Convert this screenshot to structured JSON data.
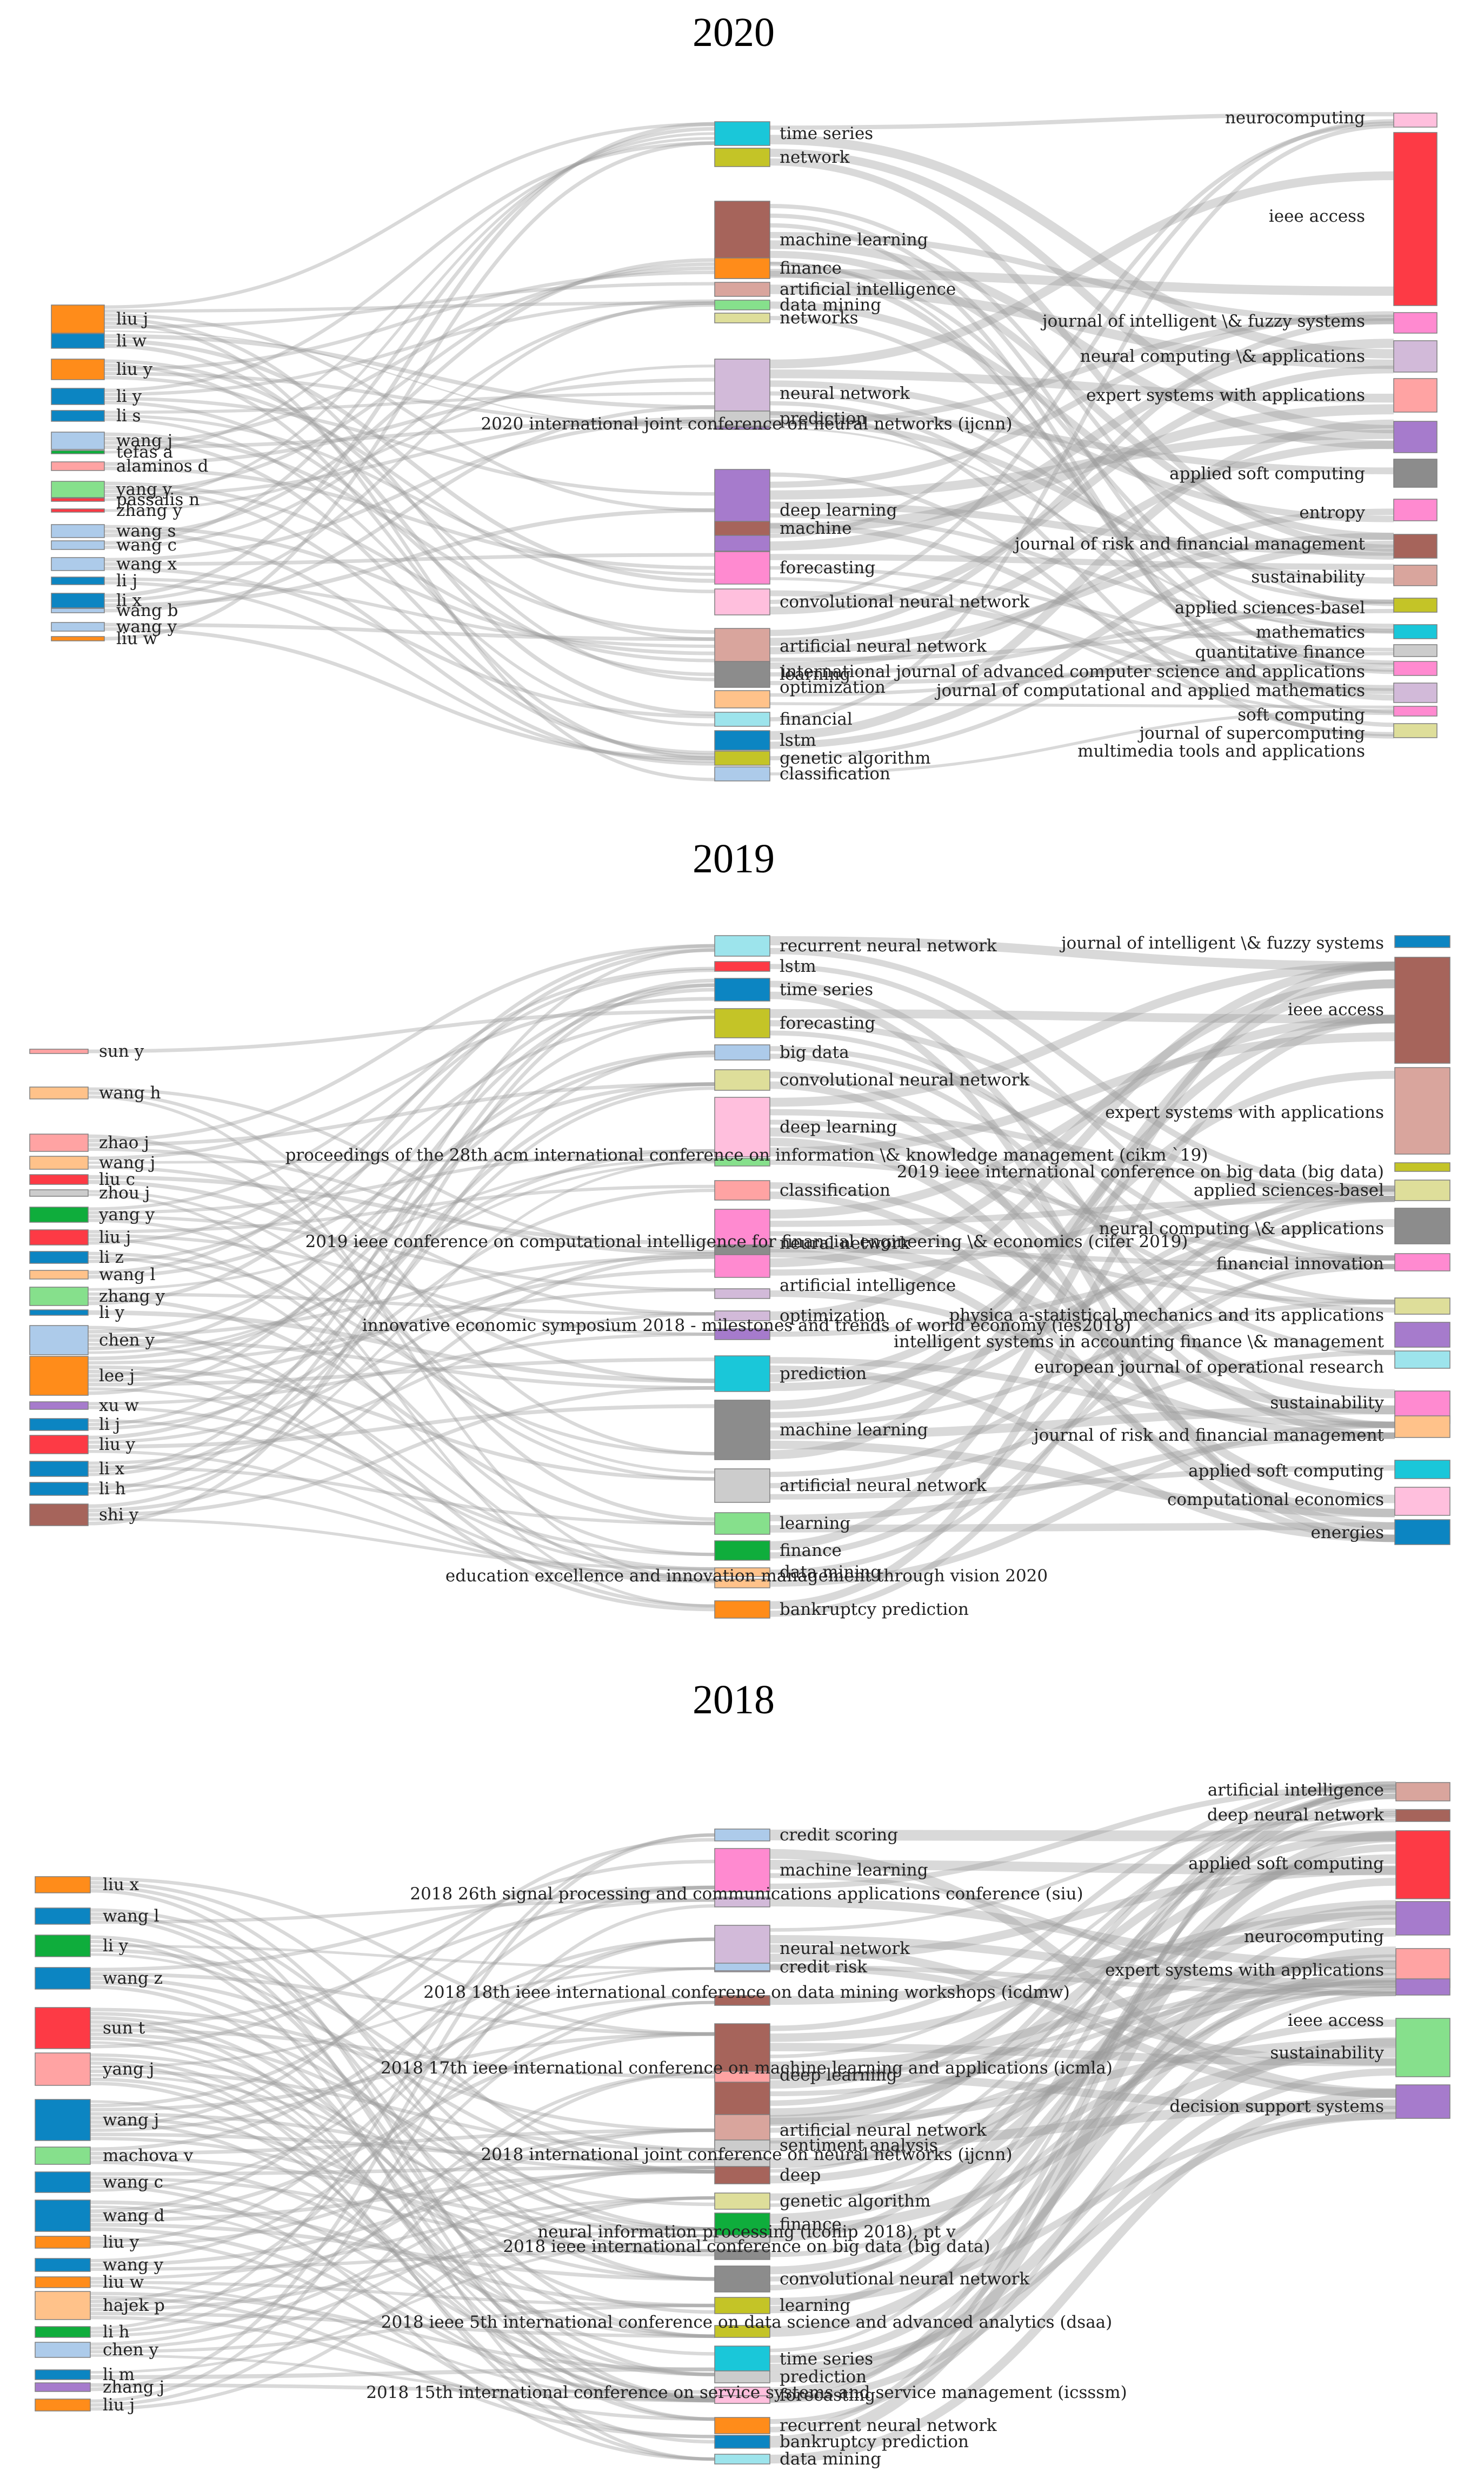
{
  "figure": {
    "panels": [
      {
        "title": "2020",
        "authors": [
          "liu j",
          "li w",
          "liu y",
          "li y",
          "li s",
          "wang j",
          "tefas a",
          "alaminos d",
          "yang y",
          "passalis n",
          "zhang y",
          "wang s",
          "wang c",
          "wang x",
          "li j",
          "li x",
          "wang b",
          "wang y",
          "liu w"
        ],
        "keywords": [
          "time series",
          "network",
          "machine learning",
          "finance",
          "artificial intelligence",
          "data mining",
          "networks",
          "neural network",
          "prediction",
          "2020 international joint conference on neural networks (ijcnn)",
          "deep learning",
          "machine",
          "forecasting",
          "convolutional neural network",
          "artificial neural network",
          "learning",
          "optimization",
          "financial",
          "lstm",
          "genetic algorithm",
          "classification"
        ],
        "venues": [
          "neurocomputing",
          "ieee access",
          "journal of intelligent \\& fuzzy systems",
          "neural computing \\& applications",
          "expert systems with applications",
          "applied soft computing",
          "entropy",
          "journal of risk and financial management",
          "sustainability",
          "applied sciences-basel",
          "mathematics",
          "quantitative finance",
          "international journal of advanced computer science and applications",
          "journal of computational and applied mathematics",
          "soft computing",
          "journal of supercomputing",
          "multimedia tools and applications"
        ]
      },
      {
        "title": "2019",
        "authors": [
          "sun y",
          "wang h",
          "zhao j",
          "wang j",
          "liu c",
          "zhou j",
          "yang y",
          "liu j",
          "li z",
          "wang l",
          "zhang y",
          "li y",
          "chen y",
          "lee j",
          "xu w",
          "li j",
          "liu y",
          "li x",
          "li h",
          "shi y"
        ],
        "keywords": [
          "recurrent neural network",
          "lstm",
          "time series",
          "forecasting",
          "big data",
          "convolutional neural network",
          "deep learning",
          "proceedings of the 28th acm international conference on information \\& knowledge management (cikm `19)",
          "classification",
          "neural network",
          "2019 ieee conference on computational intelligence for financial engineering \\& economics (cifer 2019)",
          "artificial intelligence",
          "optimization",
          "innovative economic symposium 2018 - milestones and trends of world economy (ies2018)",
          "prediction",
          "machine learning",
          "artificial neural network",
          "learning",
          "finance",
          "data mining",
          "education excellence and innovation management through vision 2020",
          "bankruptcy prediction"
        ],
        "venues": [
          "journal of intelligent \\& fuzzy systems",
          "ieee access",
          "expert systems with applications",
          "2019 ieee international conference on big data (big data)",
          "applied sciences-basel",
          "neural computing \\& applications",
          "financial innovation",
          "physica a-statistical mechanics and its applications",
          "intelligent systems in accounting finance \\& management",
          "european journal of operational research",
          "sustainability",
          "journal of risk and financial management",
          "applied soft computing",
          "computational economics",
          "energies"
        ]
      },
      {
        "title": "2018",
        "authors": [
          "liu x",
          "wang l",
          "li y",
          "wang z",
          "sun t",
          "yang j",
          "wang j",
          "machova v",
          "wang c",
          "wang d",
          "liu y",
          "wang y",
          "liu w",
          "hajek p",
          "li h",
          "chen y",
          "li m",
          "zhang j",
          "liu j"
        ],
        "keywords": [
          "credit scoring",
          "machine learning",
          "2018 26th signal processing and communications applications conference (siu)",
          "neural network",
          "credit risk",
          "2018 18th ieee international conference on data mining workshops (icdmw)",
          "deep learning",
          "2018 17th ieee international conference on machine learning and applications (icmla)",
          "artificial neural network",
          "sentiment analysis",
          "2018 international joint conference on neural networks (ijcnn)",
          "deep",
          "genetic algorithm",
          "finance",
          "neural information processing (iconip 2018), pt v",
          "2018 ieee international conference on big data (big data)",
          "convolutional neural network",
          "learning",
          "2018 ieee 5th international conference on data science and advanced analytics (dsaa)",
          "time series",
          "prediction",
          "forecasting",
          "2018 15th international conference on service systems and service management (icsssm)",
          "recurrent neural network",
          "bankruptcy prediction",
          "data mining"
        ],
        "venues": [
          "artificial intelligence",
          "deep neural network",
          "applied soft computing",
          "neurocomputing",
          "expert systems with applications",
          "ieee access",
          "sustainability",
          "decision support systems"
        ]
      }
    ]
  },
  "colors": {
    "blue": "#0c85c2",
    "orange": "#ff8c1a",
    "green": "#0fad3c",
    "red": "#fd3a45",
    "purple": "#a67bcc",
    "brown": "#a6645b",
    "pink": "#ff8ad0",
    "grey": "#8c8c8c",
    "olive": "#c4c427",
    "cyan": "#1ac7d9",
    "lightblue": "#adcbea",
    "lightorange": "#ffc28a",
    "lightgreen": "#86e08c",
    "lightred": "#ffa3a3",
    "lightpurple": "#d2bad9",
    "lightbrown": "#d9a59d",
    "lightpink": "#ffbfdd",
    "lightgrey": "#cccccc",
    "lightolive": "#dede9a",
    "lightcyan": "#9de4ec",
    "flow": "#9a9a9a"
  }
}
